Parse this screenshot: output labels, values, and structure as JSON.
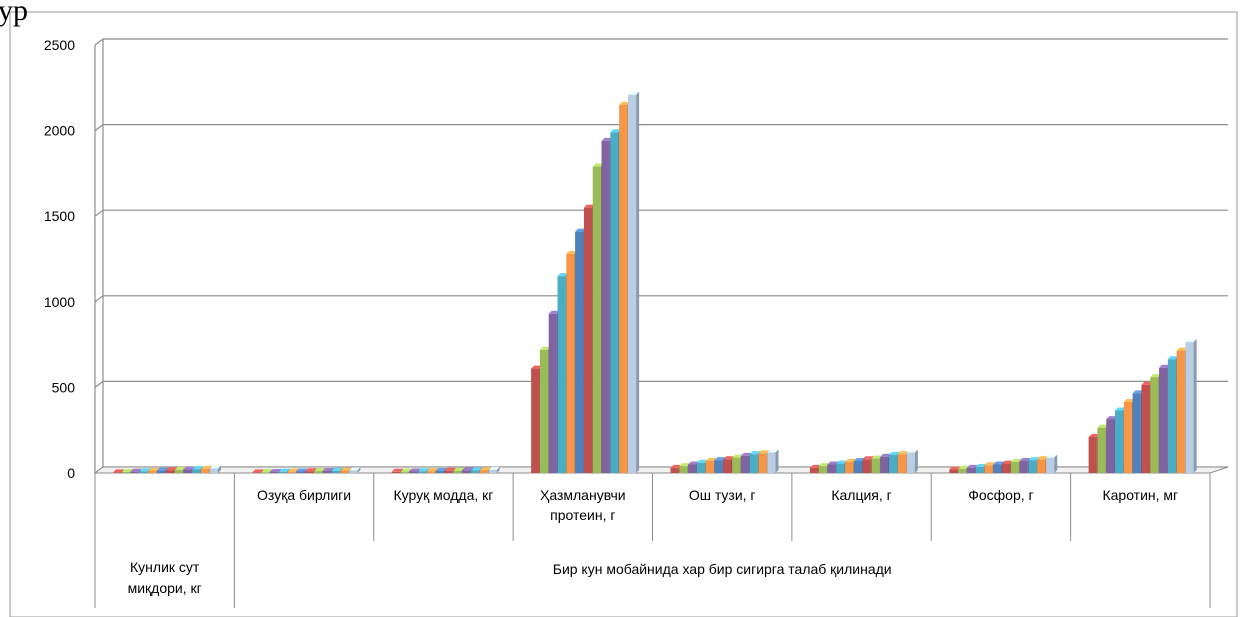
{
  "chart_data": {
    "type": "bar",
    "style": "3d-clustered-column",
    "categories": [
      "",
      "Озуқа бирлиги",
      "Куруқ модда, кг",
      "Ҳазмланувчи протеин, г",
      "Ош тузи, г",
      "Калция, г",
      "Фосфор, г",
      "Каротин, мг"
    ],
    "category_groups": [
      {
        "label": "Кунлик сут миқдори, кг",
        "span": [
          0,
          0
        ]
      },
      {
        "label": "Бир кун мобайнида хар бир сигирга талаб қилинади",
        "span": [
          1,
          7
        ]
      }
    ],
    "y_ticks": [
      "0",
      "500",
      "1000",
      "1500",
      "2000",
      "2500"
    ],
    "ylim": [
      0,
      2500
    ],
    "grid": true,
    "legend": "none",
    "series_colors": [
      "#C0504D",
      "#9BBB59",
      "#8064A2",
      "#4BACC6",
      "#F79646",
      "#4F81BD",
      "#C0504D",
      "#9BBB59",
      "#8064A2",
      "#4BACC6",
      "#F79646",
      "#B9CDE5"
    ],
    "bar_values": [
      [
        4,
        6,
        8,
        10,
        12,
        14,
        16,
        18,
        20,
        22,
        24,
        26
      ],
      [
        4,
        5,
        6,
        7,
        8,
        9,
        10,
        11,
        12,
        13,
        14,
        15
      ],
      [
        7,
        8,
        9,
        10,
        11,
        12,
        13,
        14,
        15,
        16,
        17,
        18
      ],
      [
        610,
        720,
        930,
        1150,
        1280,
        1410,
        1550,
        1790,
        1940,
        1990,
        2150,
        2210
      ],
      [
        30,
        40,
        50,
        60,
        70,
        75,
        80,
        90,
        100,
        110,
        115,
        120
      ],
      [
        30,
        40,
        50,
        55,
        65,
        70,
        80,
        85,
        95,
        105,
        110,
        120
      ],
      [
        20,
        25,
        30,
        35,
        45,
        50,
        55,
        65,
        70,
        75,
        80,
        90
      ],
      [
        210,
        265,
        315,
        365,
        415,
        465,
        515,
        560,
        615,
        665,
        715,
        765
      ]
    ]
  }
}
